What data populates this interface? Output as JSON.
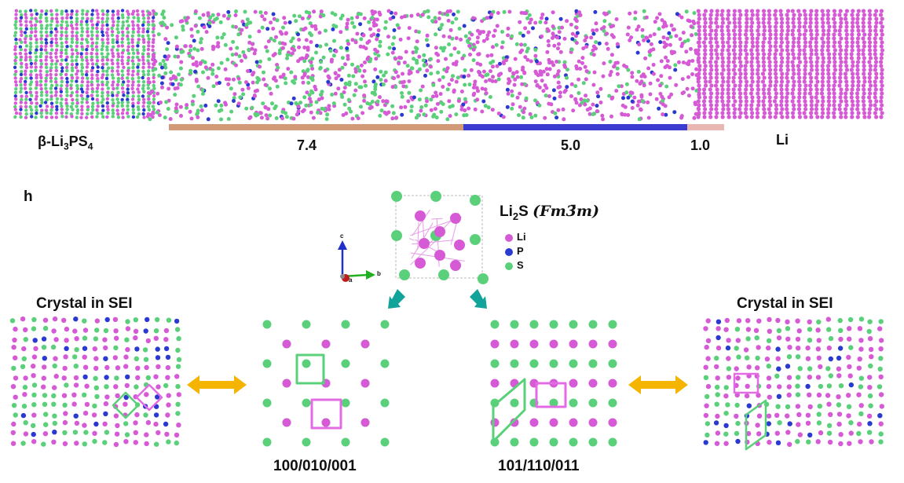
{
  "top_strip": {
    "left_label": {
      "prefix": "β-Li",
      "sub1": "3",
      "mid": "PS",
      "sub2": "4"
    },
    "right_label": "Li",
    "thickness_labels": [
      "7.4",
      "5.0",
      "1.0"
    ],
    "bar_colors": [
      "#d39a77",
      "#3b3bd0",
      "#e8b7b4"
    ]
  },
  "panel_letter": "h",
  "unit_cell": {
    "formula_prefix": "Li",
    "formula_sub": "2",
    "formula_suffix": "S",
    "space_group": "(Fm3̄m)",
    "axes": {
      "c": "c",
      "b": "b",
      "a": "a"
    },
    "legend": [
      {
        "label": "Li",
        "color": "#d65ad6"
      },
      {
        "label": "P",
        "color": "#2a3ad0"
      },
      {
        "label": "S",
        "color": "#5ad07a"
      }
    ]
  },
  "panels": {
    "left_title": "Crystal in SEI",
    "right_title": "Crystal in SEI",
    "proj1_label": "100/010/001",
    "proj2_label": "101/110/011"
  },
  "colors": {
    "li": "#d65ad6",
    "s": "#5ad07a",
    "p": "#2a3ad0",
    "arrow_teal": "#12a39a",
    "arrow_gold": "#f5b400"
  }
}
